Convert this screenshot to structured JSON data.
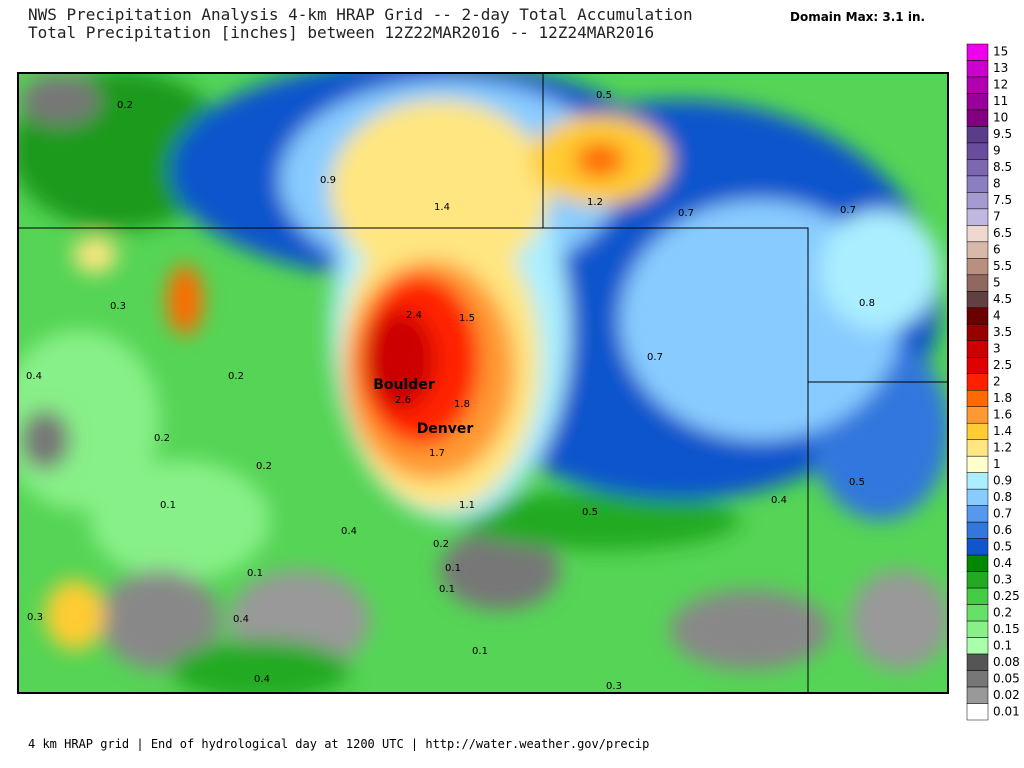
{
  "header": {
    "title": "NWS Precipitation Analysis 4-km HRAP Grid -- 2-day Total Accumulation",
    "subtitle": "Total Precipitation [inches] between 12Z22MAR2016 -- 12Z24MAR2016",
    "domain_max": "Domain Max: 3.1 in."
  },
  "map": {
    "labels": [
      "0.2",
      "0.5",
      "0.9",
      "1.4",
      "1.2",
      "0.7",
      "0.7",
      "0.3",
      "2.4",
      "1.5",
      "0.8",
      "0.7",
      "0.4",
      "0.2",
      "Boulder",
      "2.6",
      "1.8",
      "Denver",
      "0.2",
      "1.7",
      "0.2",
      "0.1",
      "1.1",
      "0.4",
      "0.5",
      "0.5",
      "0.4",
      "0.2",
      "0.1",
      "0.1",
      "0.1",
      "0.3",
      "0.4",
      "0.1",
      "0.4",
      "0.3"
    ]
  },
  "legend": {
    "entries": [
      {
        "label": "15",
        "color": "#ee00ee"
      },
      {
        "label": "13",
        "color": "#cc00cc"
      },
      {
        "label": "12",
        "color": "#b000b0"
      },
      {
        "label": "11",
        "color": "#990099"
      },
      {
        "label": "10",
        "color": "#800080"
      },
      {
        "label": "9.5",
        "color": "#5a3d8a"
      },
      {
        "label": "9",
        "color": "#6a4c9c"
      },
      {
        "label": "8.5",
        "color": "#7b68b0"
      },
      {
        "label": "8",
        "color": "#8c7fc0"
      },
      {
        "label": "7.5",
        "color": "#a59bd0"
      },
      {
        "label": "7",
        "color": "#c0b8e0"
      },
      {
        "label": "6.5",
        "color": "#eed8d0"
      },
      {
        "label": "6",
        "color": "#d8b8a8"
      },
      {
        "label": "5.5",
        "color": "#b89080"
      },
      {
        "label": "5",
        "color": "#906860"
      },
      {
        "label": "4.5",
        "color": "#604040"
      },
      {
        "label": "4",
        "color": "#6a0000"
      },
      {
        "label": "3.5",
        "color": "#990000"
      },
      {
        "label": "3",
        "color": "#cc0000"
      },
      {
        "label": "2.5",
        "color": "#e00000"
      },
      {
        "label": "2",
        "color": "#ff2000"
      },
      {
        "label": "1.8",
        "color": "#ff6a00"
      },
      {
        "label": "1.6",
        "color": "#ff9933"
      },
      {
        "label": "1.4",
        "color": "#ffcc33"
      },
      {
        "label": "1.2",
        "color": "#ffe680"
      },
      {
        "label": "1",
        "color": "#ffffcc"
      },
      {
        "label": "0.9",
        "color": "#aaeeff"
      },
      {
        "label": "0.8",
        "color": "#88ccff"
      },
      {
        "label": "0.7",
        "color": "#5599ee"
      },
      {
        "label": "0.6",
        "color": "#3377dd"
      },
      {
        "label": "0.5",
        "color": "#1155cc"
      },
      {
        "label": "0.4",
        "color": "#008800"
      },
      {
        "label": "0.3",
        "color": "#22aa22"
      },
      {
        "label": "0.25",
        "color": "#44cc44"
      },
      {
        "label": "0.2",
        "color": "#66e066"
      },
      {
        "label": "0.15",
        "color": "#88f088"
      },
      {
        "label": "0.1",
        "color": "#aaffaa"
      },
      {
        "label": "0.08",
        "color": "#555555"
      },
      {
        "label": "0.05",
        "color": "#777777"
      },
      {
        "label": "0.02",
        "color": "#999999"
      },
      {
        "label": "0.01",
        "color": "#ffffff"
      }
    ]
  },
  "footer": {
    "text": "4 km HRAP grid | End of hydrological day at 1200 UTC | http://water.weather.gov/precip"
  }
}
